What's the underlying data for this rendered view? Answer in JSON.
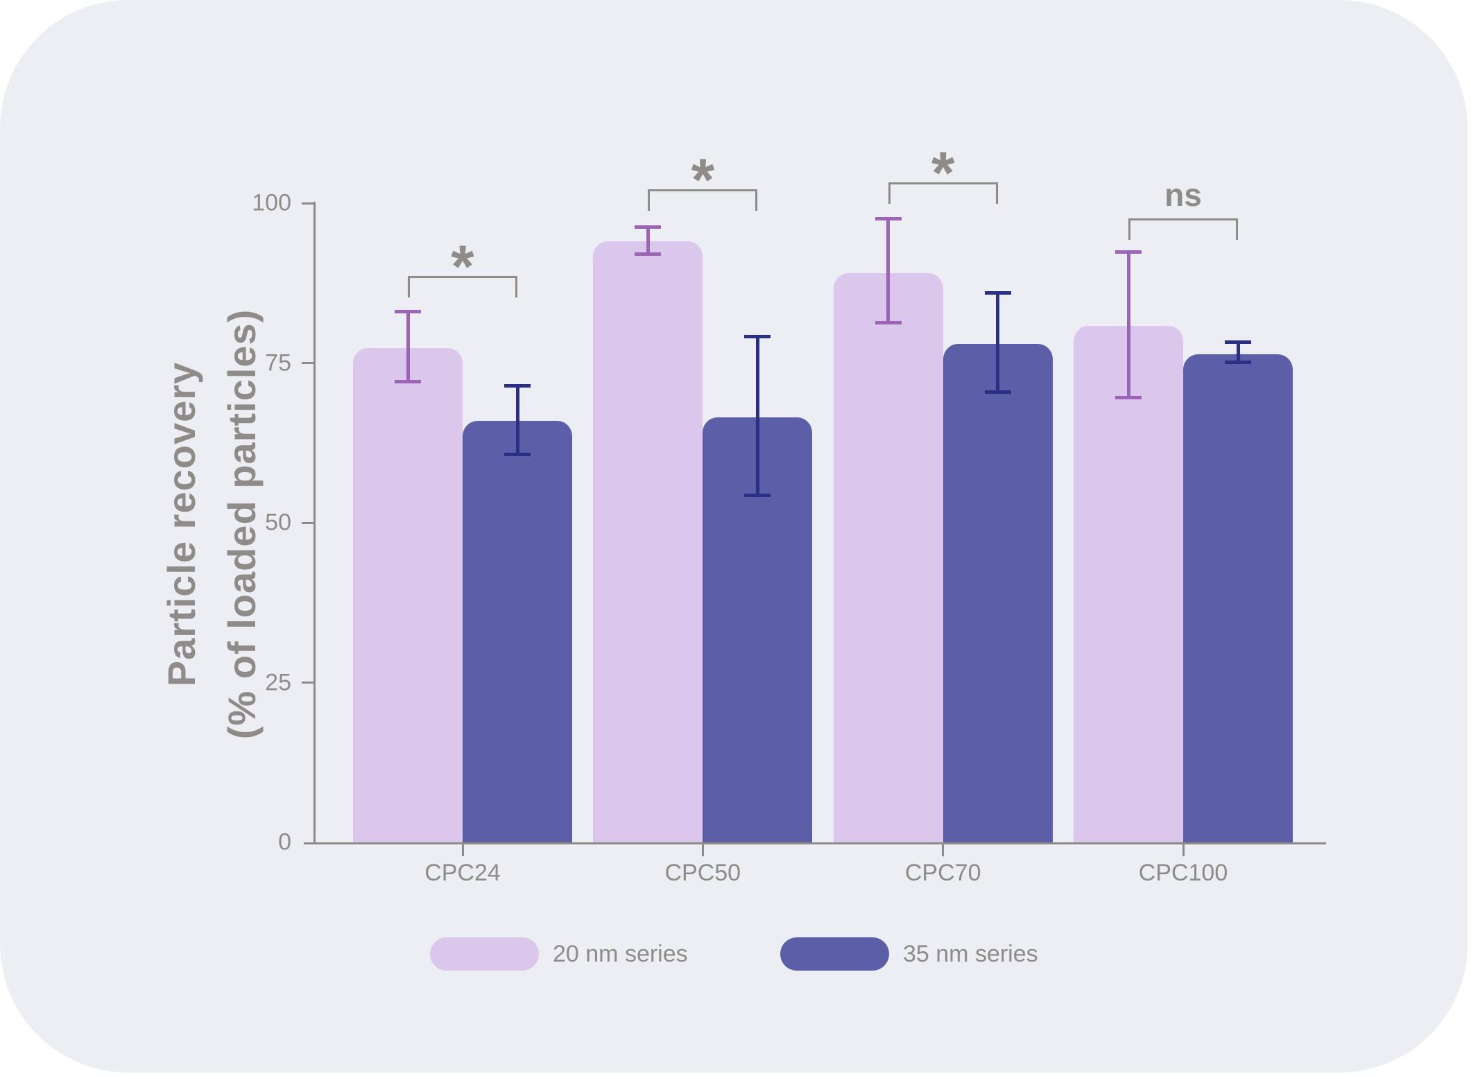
{
  "chart_data": {
    "type": "bar",
    "title": "",
    "ylabel_line1": "Particle recovery",
    "ylabel_line2": "(% of loaded particles)",
    "categories": [
      "CPC24",
      "CPC50",
      "CPC70",
      "CPC100"
    ],
    "y_ticks": [
      100,
      75,
      50,
      25,
      0
    ],
    "ylim": [
      0,
      100
    ],
    "grid": false,
    "legend_position": "bottom",
    "series": [
      {
        "name": "20 nm series",
        "color": "#dbc7ec",
        "error_color": "#9c64b4",
        "values": [
          77.3,
          94.0,
          89.0,
          80.8
        ],
        "error_low": [
          72.1,
          92.0,
          81.3,
          69.6
        ],
        "error_high": [
          83.0,
          96.3,
          97.6,
          92.4
        ]
      },
      {
        "name": "35 nm series",
        "color": "#5c5fa8",
        "error_color": "#2b2f83",
        "values": [
          65.9,
          66.5,
          78.0,
          76.4
        ],
        "error_low": [
          60.7,
          54.3,
          70.4,
          75.1
        ],
        "error_high": [
          71.4,
          79.1,
          86.0,
          78.2
        ]
      }
    ],
    "significance": [
      {
        "category": "CPC24",
        "label": "*",
        "bracket_y_value": 88.6
      },
      {
        "category": "CPC50",
        "label": "*",
        "bracket_y_value": 102.2
      },
      {
        "category": "CPC70",
        "label": "*",
        "bracket_y_value": 103.3
      },
      {
        "category": "CPC100",
        "label": "ns",
        "bracket_y_value": 97.6
      }
    ]
  },
  "colors": {
    "panel_background": "#edeef4",
    "page_background": "#ffffff",
    "axis": "#8f8b89",
    "text": "#8f8b89"
  }
}
